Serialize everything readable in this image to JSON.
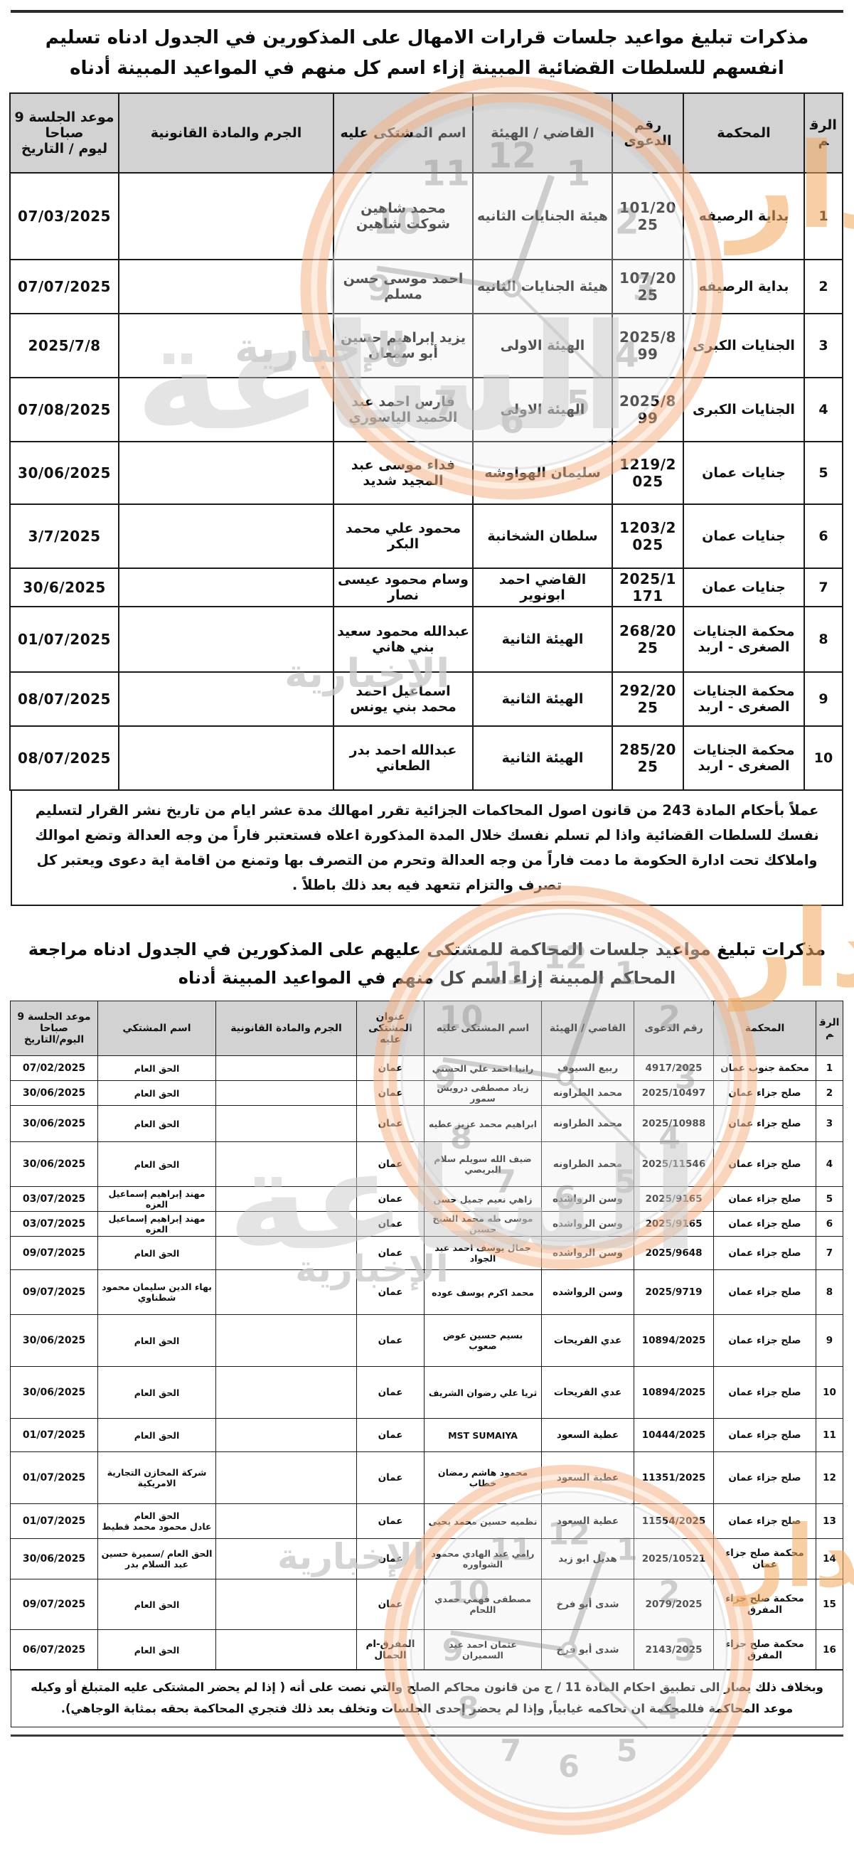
{
  "section1": {
    "title": "مذكرات تبليغ مواعيد جلسات قرارات الامهال على المذكورين في الجدول ادناه تسليم انفسهم للسلطات القضائية المبينة إزاء اسم كل منهم في المواعيد المبينة أدناه",
    "table": {
      "headers": {
        "num": "الرقم",
        "court": "المحكمة",
        "case": "رقم الدعوى",
        "judge": "القاضي / الهيئة",
        "defendant": "اسم المشتكى عليه",
        "crime": "الجرم والمادة القانونية",
        "date": "موعد الجلسة 9 صباحا\nليوم / التاريخ"
      },
      "rows": [
        {
          "num": "1",
          "court": "بداية الرصيفه",
          "case": "101/2025",
          "judge": "هيئة الجنايات الثانيه",
          "defendant": "محمد شاهين شوكت شاهين",
          "crime": "",
          "date": "07/03/2025"
        },
        {
          "num": "2",
          "court": "بداية الرصيفه",
          "case": "107/2025",
          "judge": "هيئة الجنايات الثانيه",
          "defendant": "احمد موسى حسن مسلم",
          "crime": "",
          "date": "07/07/2025"
        },
        {
          "num": "3",
          "court": "الجنايات الكبرى",
          "case": "2025/899",
          "judge": "الهيئة الاولى",
          "defendant": "يزيد إبراهيم حسين أبو سمعان",
          "crime": "",
          "date": "2025/7/8"
        },
        {
          "num": "4",
          "court": "الجنايات الكبرى",
          "case": "2025/899",
          "judge": "الهيئة الاولى",
          "defendant": "فارس احمد عبد الحميد الياسوري",
          "crime": "",
          "date": "07/08/2025"
        },
        {
          "num": "5",
          "court": "جنايات عمان",
          "case": "1219/2025",
          "judge": "سليمان الهواوشه",
          "defendant": "فداء موسى عبد المجيد شديد",
          "crime": "",
          "date": "30/06/2025"
        },
        {
          "num": "6",
          "court": "جنايات عمان",
          "case": "1203/2025",
          "judge": "سلطان الشخانبة",
          "defendant": "محمود علي محمد البكر",
          "crime": "",
          "date": "3/7/2025"
        },
        {
          "num": "7",
          "court": "جنايات عمان",
          "case": "2025/1171",
          "judge": "القاضي احمد ابونوير",
          "defendant": "وسام محمود عيسى نصار",
          "crime": "",
          "date": "30/6/2025"
        },
        {
          "num": "8",
          "court": "محكمة الجنايات الصغرى - اربد",
          "case": "268/2025",
          "judge": "الهيئة الثانية",
          "defendant": "عبدالله محمود سعيد بني هاني",
          "crime": "",
          "date": "01/07/2025"
        },
        {
          "num": "9",
          "court": "محكمة الجنايات الصغرى - اربد",
          "case": "292/2025",
          "judge": "الهيئة الثانية",
          "defendant": "اسماعيل احمد محمد بني يونس",
          "crime": "",
          "date": "08/07/2025"
        },
        {
          "num": "10",
          "court": "محكمة الجنايات الصغرى - اربد",
          "case": "285/2025",
          "judge": "الهيئة الثانية",
          "defendant": "عبدالله احمد بدر الطعاني",
          "crime": "",
          "date": "08/07/2025"
        }
      ]
    },
    "footer": "عملاً بأحكام المادة 243 من قانون اصول المحاكمات الجزائية تقرر امهالك مدة عشر ايام من تاريخ نشر القرار لتسليم نفسك للسلطات القضائية واذا لم تسلم نفسك خلال المدة المذكورة اعلاه فستعتبر فاراً من وجه العدالة وتضع اموالك واملاكك تحت ادارة الحكومة ما دمت فاراً من وجه العدالة وتحرم من التصرف بها وتمنع من اقامة اية دعوى ويعتبر كل تصرف والتزام تتعهد فيه بعد ذلك باطلاً ."
  },
  "section2": {
    "title": "مذكرات تبليغ مواعيد جلسات المحاكمة للمشتكى عليهم على المذكورين في الجدول ادناه مراجعة المحاكم المبينة إزاء اسم كل منهم في المواعيد المبينة أدناه",
    "table": {
      "headers": {
        "num": "الرقم",
        "court": "المحكمة",
        "case": "رقم الدعوى",
        "judge": "القاضي / الهيئة",
        "defendant": "اسم المشتكى عليه",
        "address": "عنوان\nالمشتكى عليه",
        "crime": "الجرم والمادة القانونية",
        "complainant": "اسم المشتكي",
        "date": "موعد الجلسة 9\nصباحا\nاليوم/التاريخ"
      },
      "rows": [
        {
          "num": "1",
          "court": "محكمة جنوب عمان",
          "case": "4917/2025",
          "judge": "ربيع السيوف",
          "defendant": "رانيا احمد علي الحسني",
          "address": "عمان",
          "crime": "",
          "complainant": "الحق العام",
          "date": "07/02/2025"
        },
        {
          "num": "2",
          "court": "صلح جزاء عمان",
          "case": "2025/10497",
          "judge": "محمد الطراونه",
          "defendant": "زياد مصطفى درويش سمور",
          "address": "عمان",
          "crime": "",
          "complainant": "الحق العام",
          "date": "30/06/2025"
        },
        {
          "num": "3",
          "court": "صلح جزاء عمان",
          "case": "2025/10988",
          "judge": "محمد الطراونه",
          "defendant": "ابراهيم محمد عزيز عطيه",
          "address": "عمان",
          "crime": "",
          "complainant": "الحق العام",
          "date": "30/06/2025"
        },
        {
          "num": "4",
          "court": "صلح جزاء عمان",
          "case": "2025/11546",
          "judge": "محمد الطراونه",
          "defendant": "ضيف الله سويلم سلام البريصي",
          "address": "عمان",
          "crime": "",
          "complainant": "الحق العام",
          "date": "30/06/2025"
        },
        {
          "num": "5",
          "court": "صلح جزاء عمان",
          "case": "2025/9165",
          "judge": "وسن الرواشده",
          "defendant": "زاهي نعيم جميل حسن",
          "address": "عمان",
          "crime": "",
          "complainant": "مهند إبراهيم إسماعيل العزه",
          "date": "03/07/2025"
        },
        {
          "num": "6",
          "court": "صلح جزاء عمان",
          "case": "2025/9165",
          "judge": "وسن الرواشده",
          "defendant": "موسى طه محمد الشيخ حسين",
          "address": "عمان",
          "crime": "",
          "complainant": "مهند إبراهيم إسماعيل العزه",
          "date": "03/07/2025"
        },
        {
          "num": "7",
          "court": "صلح جزاء عمان",
          "case": "2025/9648",
          "judge": "وسن الرواشده",
          "defendant": "جمال يوسف احمد عبد الجواد",
          "address": "عمان",
          "crime": "",
          "complainant": "الحق العام",
          "date": "09/07/2025"
        },
        {
          "num": "8",
          "court": "صلح جزاء عمان",
          "case": "2025/9719",
          "judge": "وسن الرواشده",
          "defendant": "محمد اكرم يوسف عوده",
          "address": "عمان",
          "crime": "",
          "complainant": "بهاء الدين سليمان محمود شطناوي",
          "date": "09/07/2025"
        },
        {
          "num": "9",
          "court": "صلح جزاء عمان",
          "case": "10894/2025",
          "judge": "عدي الفريحات",
          "defendant": "بسيم حسين عوض صعوب",
          "address": "عمان",
          "crime": "",
          "complainant": "الحق العام",
          "date": "30/06/2025"
        },
        {
          "num": "10",
          "court": "صلح جزاء عمان",
          "case": "10894/2025",
          "judge": "عدي الفريحات",
          "defendant": "ثريا علي رضوان الشريف",
          "address": "عمان",
          "crime": "",
          "complainant": "الحق العام",
          "date": "30/06/2025"
        },
        {
          "num": "11",
          "court": "صلح جزاء عمان",
          "case": "10444/2025",
          "judge": "عطية السعود",
          "defendant": "MST SUMAIYA",
          "address": "عمان",
          "crime": "",
          "complainant": "الحق العام",
          "date": "01/07/2025"
        },
        {
          "num": "12",
          "court": "صلح جزاء عمان",
          "case": "11351/2025",
          "judge": "عطية السعود",
          "defendant": "محمود هاشم رمضان خطاب",
          "address": "عمان",
          "crime": "",
          "complainant": "شركة المخازن التجارية الامريكية",
          "date": "01/07/2025"
        },
        {
          "num": "13",
          "court": "صلح جزاء عمان",
          "case": "11554/2025",
          "judge": "عطية السعود",
          "defendant": "نظميه حسين محمد يحيى",
          "address": "عمان",
          "crime": "",
          "complainant": "الحق العام\nعادل محمود محمد قطيط",
          "date": "01/07/2025"
        },
        {
          "num": "14",
          "court": "محكمة صلح جزاء عمان",
          "case": "2025/10521",
          "judge": "هديل ابو زيد",
          "defendant": "رامي عبد الهادي محمود الشواوره",
          "address": "عمان",
          "crime": "",
          "complainant": "الحق العام /سميرة حسين عبد السلام بدر",
          "date": "30/06/2025"
        },
        {
          "num": "15",
          "court": "محكمة صلح جزاء المفرق",
          "case": "2079/2025",
          "judge": "شدى أبو فرخ",
          "defendant": "مصطفى فهمي حمدي اللحام",
          "address": "عمان",
          "crime": "",
          "complainant": "الحق العام",
          "date": "09/07/2025"
        },
        {
          "num": "16",
          "court": "محكمة صلح جزاء المفرق",
          "case": "2143/2025",
          "judge": "شدى أبو فرخ",
          "defendant": "عثمان احمد عيد السميران",
          "address": "المفرق-ام الجمال",
          "crime": "",
          "complainant": "الحق العام",
          "date": "06/07/2025"
        }
      ]
    },
    "footer": "وبخلاف ذلك يصار الى تطبيق احكام المادة 11 / ج من قانون محاكم الصلح والتي نصت على أنه ( إذا لم يحضر المشتكى عليه المتبلغ أو وكيله موعد المحاكمة فللمحكمة ان تحاكمه غيابياً, وإذا لم يحضر إحدى الجلسات وتخلف بعد ذلك فتجري المحاكمة بحقه بمثابة الوجاهي)."
  },
  "watermark": {
    "news_label": "الإخبارية",
    "brand_word_right": "مدار",
    "brand_word_big": "الساعة",
    "clock_numbers": [
      "12",
      "1",
      "2",
      "3",
      "4",
      "5",
      "6",
      "7",
      "8",
      "9",
      "10",
      "11"
    ],
    "ring_color": "#f6b488",
    "gray_color": "#c7c7c7",
    "orange_color": "#f3a95d"
  }
}
